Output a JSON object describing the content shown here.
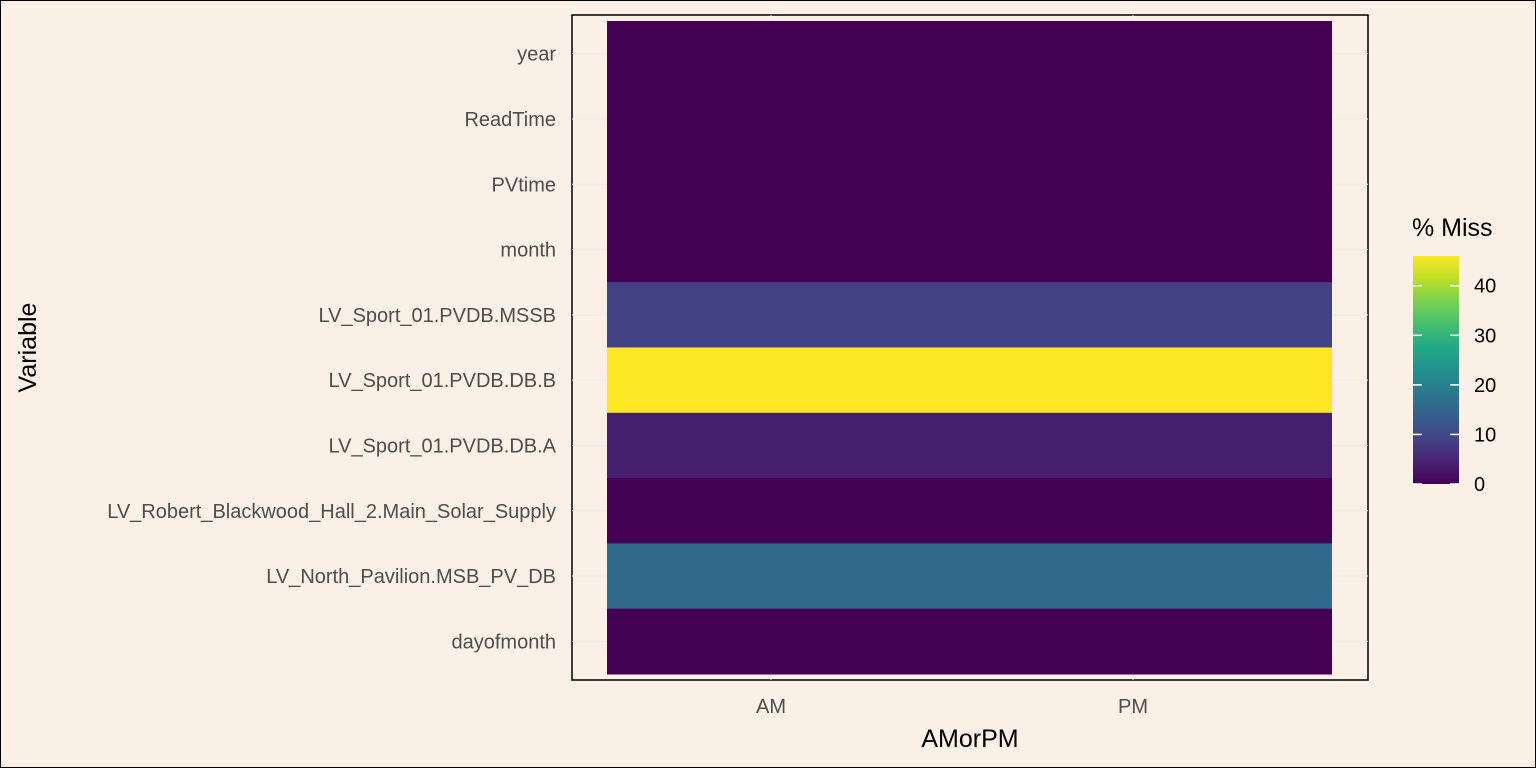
{
  "chart_data": {
    "type": "heatmap",
    "title": "",
    "xlabel": "AMorPM",
    "ylabel": "Variable",
    "x_categories": [
      "AM",
      "PM"
    ],
    "y_categories": [
      "year",
      "ReadTime",
      "PVtime",
      "month",
      "LV_Sport_01.PVDB.MSSB",
      "LV_Sport_01.PVDB.DB.B",
      "LV_Sport_01.PVDB.DB.A",
      "LV_Robert_Blackwood_Hall_2.Main_Solar_Supply",
      "LV_North_Pavilion.MSB_PV_DB",
      "dayofmonth"
    ],
    "values": [
      [
        0,
        0
      ],
      [
        0,
        0
      ],
      [
        0,
        0
      ],
      [
        0,
        0
      ],
      [
        9,
        9
      ],
      [
        46,
        46
      ],
      [
        4,
        4
      ],
      [
        0,
        0
      ],
      [
        16,
        16
      ],
      [
        0,
        0
      ]
    ],
    "legend": {
      "title": "% Miss",
      "position": "right",
      "ticks": [
        0,
        10,
        20,
        30,
        40
      ],
      "range": [
        0,
        46
      ]
    },
    "colormap": "viridis",
    "grid": true,
    "colors": {
      "background": "#FAF0E6",
      "grid": "#EBEBF0"
    }
  }
}
